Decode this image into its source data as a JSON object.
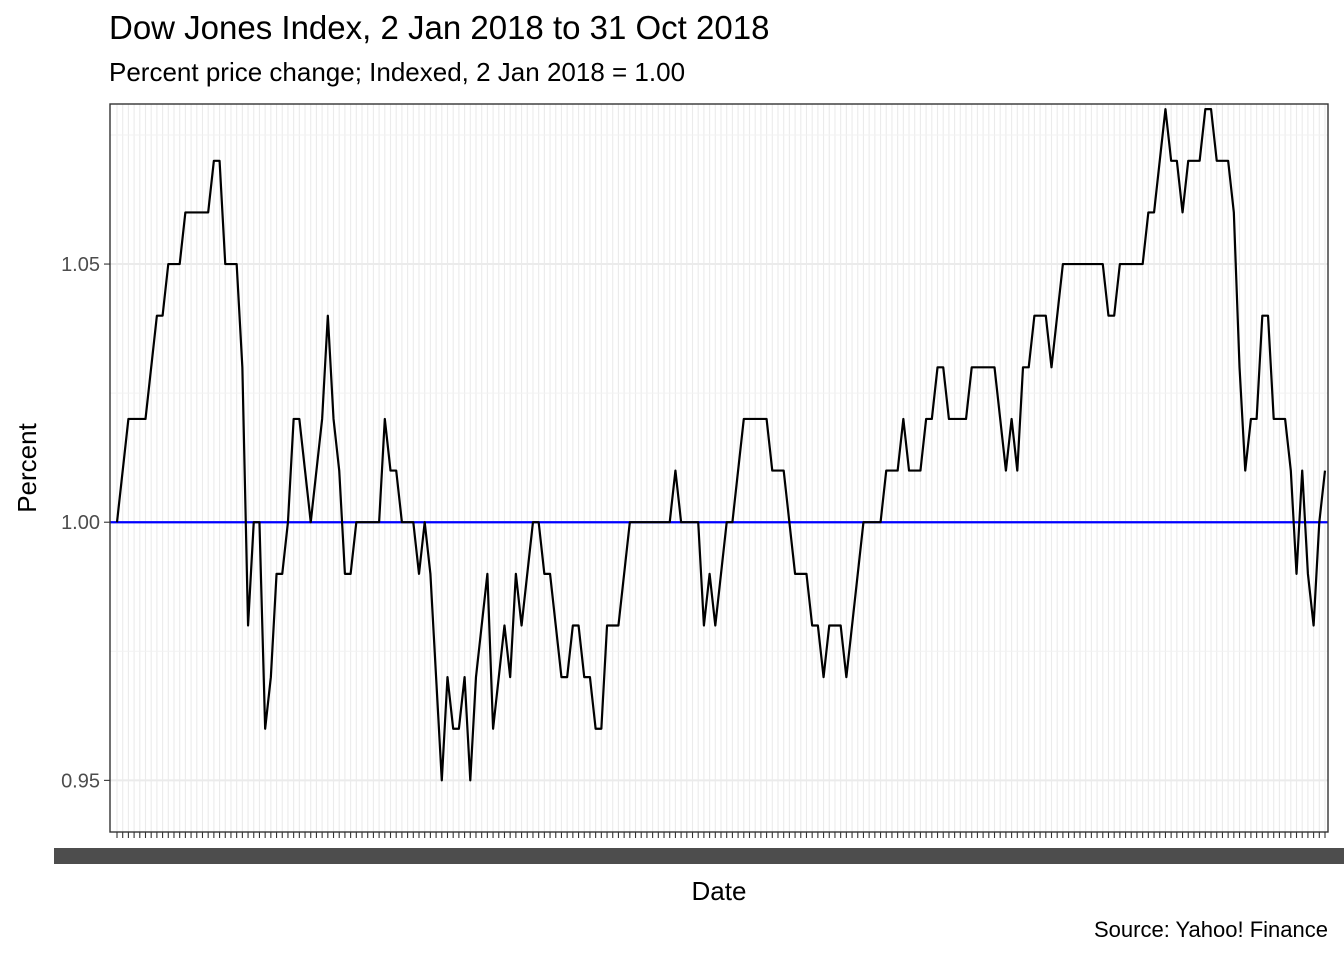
{
  "chart_data": {
    "type": "line",
    "title": "Dow Jones Index, 2 Jan 2018 to 31 Oct 2018",
    "subtitle": "Percent price change; Indexed, 2 Jan 2018 = 1.00",
    "xlabel": "Date",
    "ylabel": "Percent",
    "caption": "Source: Yahoo! Finance",
    "x_range": [
      "2018-01-02",
      "2018-10-31"
    ],
    "ylim": [
      0.94,
      1.081
    ],
    "yticks": [
      0.95,
      1.0,
      1.05
    ],
    "ytick_labels": [
      "0.95",
      "1.00",
      "1.05"
    ],
    "grid": true,
    "reference_line": {
      "y": 1.0,
      "color": "#0000ff"
    },
    "series": [
      {
        "color": "#000000",
        "values": [
          1.0,
          1.01,
          1.02,
          1.02,
          1.02,
          1.02,
          1.03,
          1.04,
          1.04,
          1.05,
          1.05,
          1.05,
          1.06,
          1.06,
          1.06,
          1.06,
          1.06,
          1.07,
          1.07,
          1.05,
          1.05,
          1.05,
          1.03,
          0.98,
          1.0,
          1.0,
          0.96,
          0.97,
          0.99,
          0.99,
          1.0,
          1.02,
          1.02,
          1.01,
          1.0,
          1.01,
          1.02,
          1.04,
          1.02,
          1.01,
          0.99,
          0.99,
          1.0,
          1.0,
          1.0,
          1.0,
          1.0,
          1.02,
          1.01,
          1.01,
          1.0,
          1.0,
          1.0,
          0.99,
          1.0,
          0.99,
          0.97,
          0.95,
          0.97,
          0.96,
          0.96,
          0.97,
          0.95,
          0.97,
          0.98,
          0.99,
          0.96,
          0.97,
          0.98,
          0.97,
          0.99,
          0.98,
          0.99,
          1.0,
          1.0,
          0.99,
          0.99,
          0.98,
          0.97,
          0.97,
          0.98,
          0.98,
          0.97,
          0.97,
          0.96,
          0.96,
          0.98,
          0.98,
          0.98,
          0.99,
          1.0,
          1.0,
          1.0,
          1.0,
          1.0,
          1.0,
          1.0,
          1.0,
          1.01,
          1.0,
          1.0,
          1.0,
          1.0,
          0.98,
          0.99,
          0.98,
          0.99,
          1.0,
          1.0,
          1.01,
          1.02,
          1.02,
          1.02,
          1.02,
          1.02,
          1.01,
          1.01,
          1.01,
          1.0,
          0.99,
          0.99,
          0.99,
          0.98,
          0.98,
          0.97,
          0.98,
          0.98,
          0.98,
          0.97,
          0.98,
          0.99,
          1.0,
          1.0,
          1.0,
          1.0,
          1.01,
          1.01,
          1.01,
          1.02,
          1.01,
          1.01,
          1.01,
          1.02,
          1.02,
          1.03,
          1.03,
          1.02,
          1.02,
          1.02,
          1.02,
          1.03,
          1.03,
          1.03,
          1.03,
          1.03,
          1.02,
          1.01,
          1.02,
          1.01,
          1.03,
          1.03,
          1.04,
          1.04,
          1.04,
          1.03,
          1.04,
          1.05,
          1.05,
          1.05,
          1.05,
          1.05,
          1.05,
          1.05,
          1.05,
          1.04,
          1.04,
          1.05,
          1.05,
          1.05,
          1.05,
          1.05,
          1.06,
          1.06,
          1.07,
          1.08,
          1.07,
          1.07,
          1.06,
          1.07,
          1.07,
          1.07,
          1.08,
          1.08,
          1.07,
          1.07,
          1.07,
          1.06,
          1.03,
          1.01,
          1.02,
          1.02,
          1.04,
          1.04,
          1.02,
          1.02,
          1.02,
          1.01,
          0.99,
          1.01,
          0.99,
          0.98,
          1.0,
          1.01
        ]
      }
    ]
  }
}
